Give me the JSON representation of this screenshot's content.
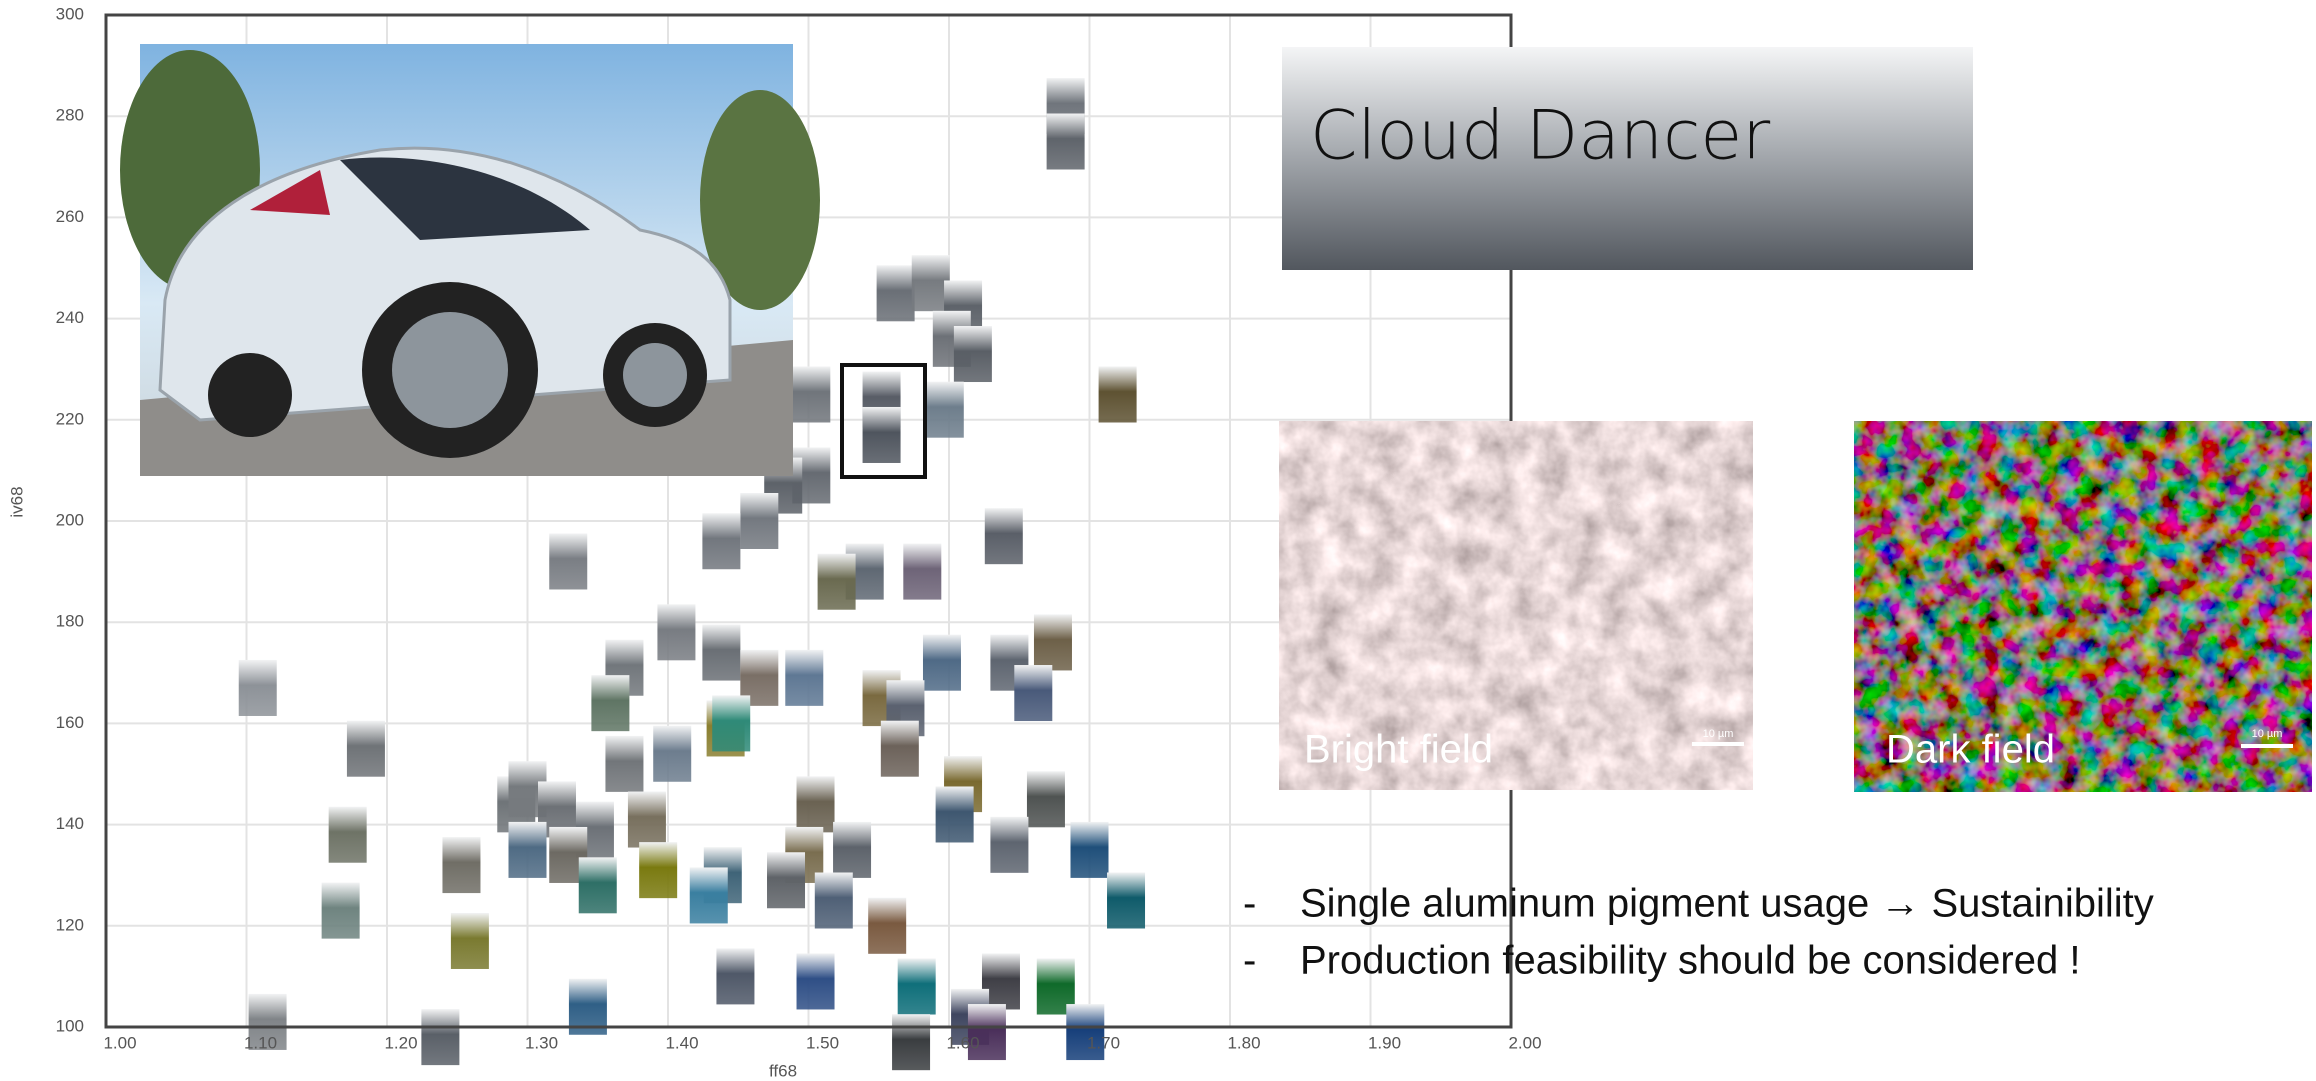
{
  "chart_data": {
    "type": "scatter",
    "xlabel": "ff68",
    "ylabel": "iv68",
    "xlim": [
      1,
      2
    ],
    "ylim": [
      100,
      300
    ],
    "xticks": [
      {
        "value": 1,
        "label": "1.00"
      },
      {
        "value": 1.1,
        "label": "1.10"
      },
      {
        "value": 1.2,
        "label": "1.20"
      },
      {
        "value": 1.3,
        "label": "1.30"
      },
      {
        "value": 1.4,
        "label": "1.40"
      },
      {
        "value": 1.5,
        "label": "1.50"
      },
      {
        "value": 1.6,
        "label": "1.60"
      },
      {
        "value": 1.7,
        "label": "1.70"
      },
      {
        "value": 1.8,
        "label": "1.80"
      },
      {
        "value": 1.9,
        "label": "1.90"
      },
      {
        "value": 2,
        "label": "2.00"
      }
    ],
    "yticks": [
      100,
      120,
      140,
      160,
      180,
      200,
      220,
      240,
      260,
      280,
      300
    ],
    "grid": true,
    "x": [
      1.683,
      1.683,
      1.562,
      1.587,
      1.61,
      1.602,
      1.617,
      1.72,
      1.502,
      1.552,
      1.552,
      1.597,
      1.502,
      1.482,
      1.465,
      1.438,
      1.639,
      1.329,
      1.54,
      1.52,
      1.581,
      1.406,
      1.369,
      1.438,
      1.674,
      1.643,
      1.595,
      1.465,
      1.497,
      1.66,
      1.108,
      1.359,
      1.552,
      1.569,
      1.441,
      1.445,
      1.185,
      1.403,
      1.565,
      1.369,
      1.61,
      1.669,
      1.505,
      1.292,
      1.3,
      1.321,
      1.604,
      1.385,
      1.348,
      1.172,
      1.7,
      1.643,
      1.531,
      1.3,
      1.329,
      1.497,
      1.253,
      1.393,
      1.439,
      1.35,
      1.484,
      1.726,
      1.429,
      1.518,
      1.556,
      1.167,
      1.259,
      1.448,
      1.505,
      1.577,
      1.637,
      1.676,
      1.615,
      1.627,
      1.343,
      1.115,
      1.238,
      1.573,
      1.697
    ],
    "values": [
      282,
      275,
      245,
      247,
      242,
      236,
      233,
      225,
      225,
      224,
      217,
      222,
      209,
      207,
      200,
      196,
      197,
      192,
      190,
      188,
      190,
      178,
      171,
      174,
      176,
      172,
      172,
      169,
      169,
      166,
      167,
      164,
      165,
      163,
      159,
      160,
      155,
      154,
      155,
      152,
      148,
      145,
      144,
      144,
      147,
      143,
      142,
      141,
      139,
      138,
      135,
      136,
      135,
      135,
      134,
      134,
      132,
      131,
      130,
      128,
      129,
      125,
      126,
      125,
      120,
      123,
      117,
      110,
      109,
      108,
      109,
      108,
      102,
      99,
      104,
      101,
      98,
      97,
      99
    ],
    "colors": [
      "#70757c",
      "#5f646b",
      "#6a6f76",
      "#777b80",
      "#5e636a",
      "#6d7177",
      "#5a5f66",
      "#5e5232",
      "#70757b",
      "#585d66",
      "#4f555e",
      "#6e7e8c",
      "#666b72",
      "#5d6269",
      "#747980",
      "#72777e",
      "#5a5f68",
      "#7a7e84",
      "#5f6873",
      "#6a6a50",
      "#6e6478",
      "#787c82",
      "#72777c",
      "#6a6f75",
      "#6d6048",
      "#5e6570",
      "#4f6a86",
      "#7a6f66",
      "#5f7894",
      "#495a7a",
      "#8d9298",
      "#5f7564",
      "#7a6a40",
      "#5b6270",
      "#8a7f30",
      "#2f8a78",
      "#6f7377",
      "#6d7d8e",
      "#6c625a",
      "#72767a",
      "#7a6a30",
      "#4f5352",
      "#6a6252",
      "#6f7478",
      "#767a7e",
      "#6d7176",
      "#3e5770",
      "#78705e",
      "#6c7177",
      "#6e7366",
      "#1f4f7a",
      "#5e6570",
      "#5d636b",
      "#4f6b84",
      "#6d6a63",
      "#7a6e50",
      "#706e66",
      "#7a7a10",
      "#3f6478",
      "#2e6f66",
      "#5f6368",
      "#0f5b6a",
      "#3a7fa0",
      "#4f6076",
      "#7a5a40",
      "#6f8480",
      "#7a7a30",
      "#4f5868",
      "#2f4f86",
      "#0f6f7a",
      "#3f3f46",
      "#0f6a2a",
      "#3f4660",
      "#4a2f5a",
      "#2f5f86",
      "#808488",
      "#5a6068",
      "#3a3d40",
      "#163f7a"
    ]
  },
  "slide": {
    "title": "Cloud Dancer",
    "bright_label": "Bright field",
    "dark_label": "Dark field",
    "bright_scale": "10 µm",
    "dark_scale": "10 µm",
    "bullets": [
      {
        "marker": "-",
        "text": "Single aluminum pigment usage → Sustainibility"
      },
      {
        "marker": "-",
        "text": "Production feasibility should be considered !"
      }
    ]
  }
}
